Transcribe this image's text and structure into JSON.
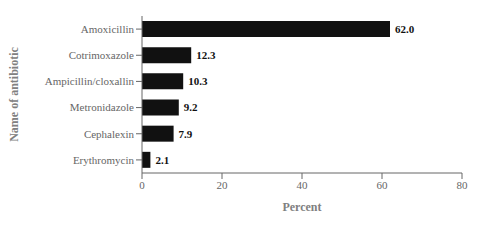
{
  "chart_data": {
    "type": "bar",
    "orientation": "horizontal",
    "categories": [
      "Erythromycin",
      "Cephalexin",
      "Metronidazole",
      "Ampicillin/cloxallin",
      "Cotrimoxazole",
      "Amoxicillin"
    ],
    "values": [
      2.1,
      7.9,
      9.2,
      10.3,
      12.3,
      62.0
    ],
    "value_labels": [
      "2.1",
      "7.9",
      "9.2",
      "10.3",
      "12.3",
      "62.0"
    ],
    "data_labels": true,
    "color": "#111111",
    "xlabel": "Percent",
    "ylabel": "Name of antibiotic",
    "xlim": [
      0,
      80
    ],
    "xticks": [
      0,
      20,
      40,
      60,
      80
    ]
  }
}
